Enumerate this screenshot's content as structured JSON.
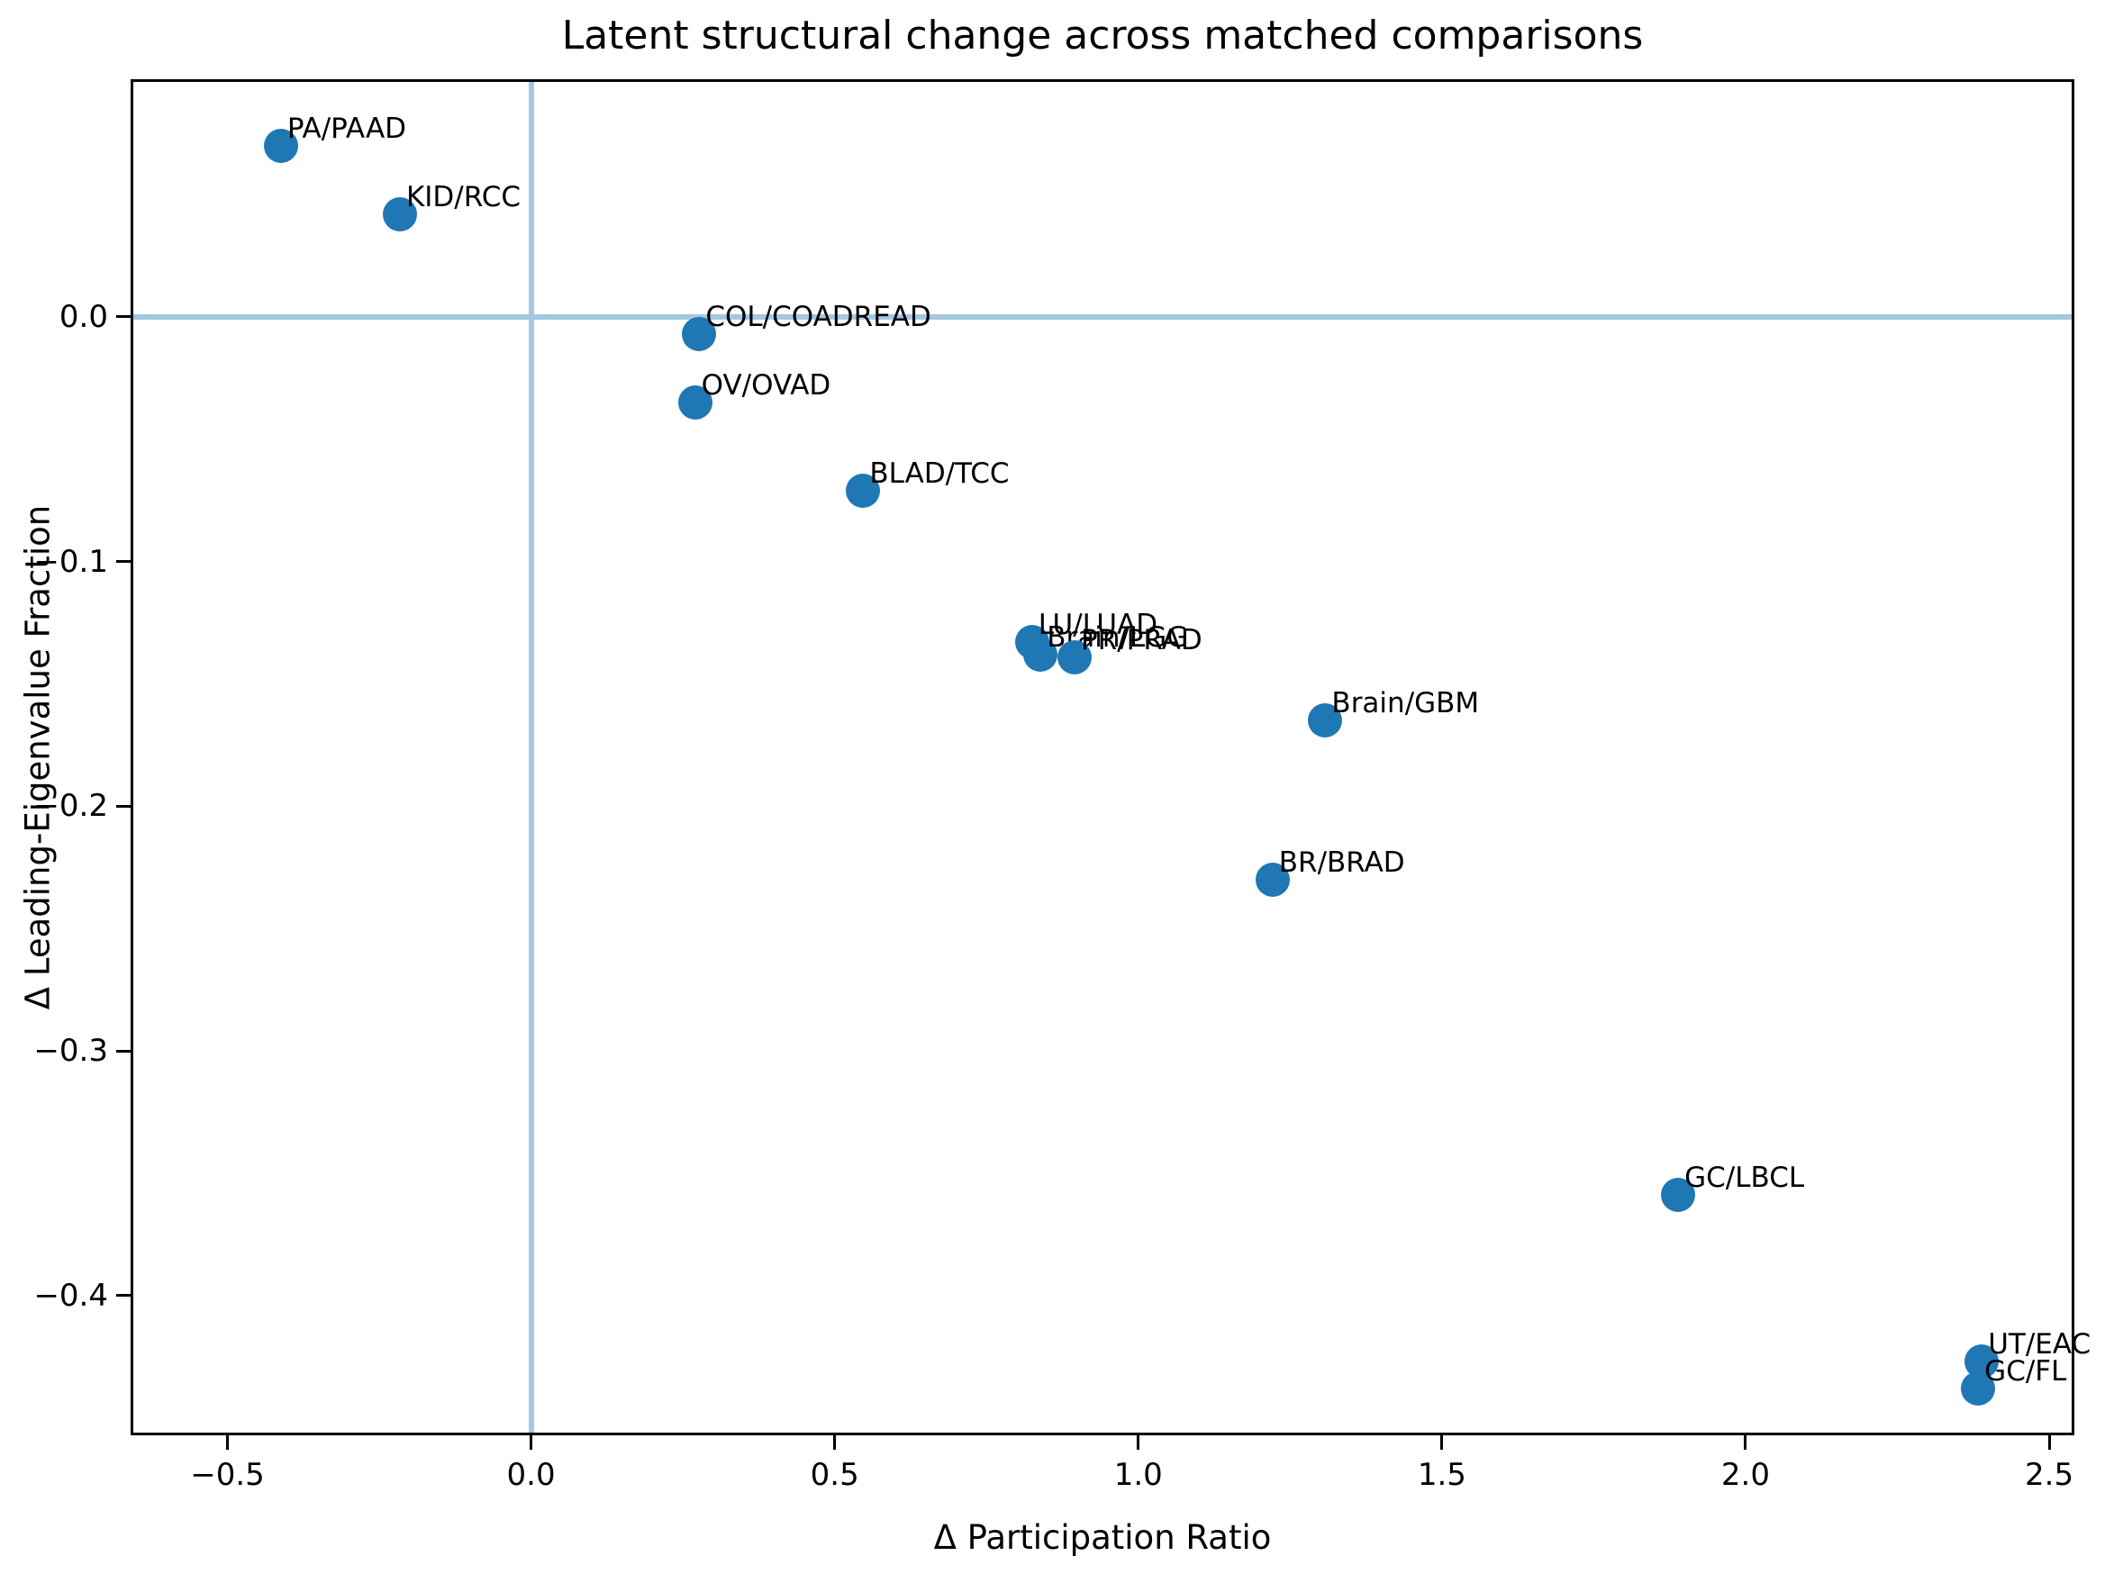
{
  "chart_data": {
    "type": "scatter",
    "title": "Latent structural change across matched comparisons",
    "xlabel": "Δ Participation Ratio",
    "ylabel": "Δ Leading-Eigenvalue Fraction",
    "xlim": [
      -0.655,
      2.537
    ],
    "ylim": [
      -0.456,
      0.096
    ],
    "grid": false,
    "legend": "none",
    "marker_color": "#1f77b4",
    "axis_color": "#000000",
    "reference_lines": {
      "vertical_x": 0.0,
      "horizontal_y": 0.0,
      "color": "#a5c8e1"
    },
    "x_ticks": {
      "values": [
        -0.5,
        0.0,
        0.5,
        1.0,
        1.5,
        2.0,
        2.5
      ],
      "labels": [
        "−0.5",
        "0.0",
        "0.5",
        "1.0",
        "1.5",
        "2.0",
        "2.5"
      ]
    },
    "y_ticks": {
      "values": [
        0.0,
        -0.1,
        -0.2,
        -0.3,
        -0.4
      ],
      "labels": [
        "0.0",
        "−0.1",
        "−0.2",
        "−0.3",
        "−0.4"
      ]
    },
    "points": [
      {
        "label": "PA/PAAD",
        "x": -0.412,
        "y": 0.07
      },
      {
        "label": "KID/RCC",
        "x": -0.216,
        "y": 0.042
      },
      {
        "label": "COL/COADREAD",
        "x": 0.277,
        "y": -0.007
      },
      {
        "label": "OV/OVAD",
        "x": 0.27,
        "y": -0.035
      },
      {
        "label": "BLAD/TCC",
        "x": 0.547,
        "y": -0.071
      },
      {
        "label": "LU/LUAD",
        "x": 0.825,
        "y": -0.133
      },
      {
        "label": "Brain/LGG",
        "x": 0.839,
        "y": -0.138
      },
      {
        "label": "PR/PRAD",
        "x": 0.895,
        "y": -0.139
      },
      {
        "label": "Brain/GBM",
        "x": 1.308,
        "y": -0.165
      },
      {
        "label": "BR/BRAD",
        "x": 1.221,
        "y": -0.23
      },
      {
        "label": "GC/LBCL",
        "x": 1.889,
        "y": -0.359
      },
      {
        "label": "UT/EAC",
        "x": 2.389,
        "y": -0.427
      },
      {
        "label": "GC/FL",
        "x": 2.383,
        "y": -0.438
      }
    ]
  }
}
